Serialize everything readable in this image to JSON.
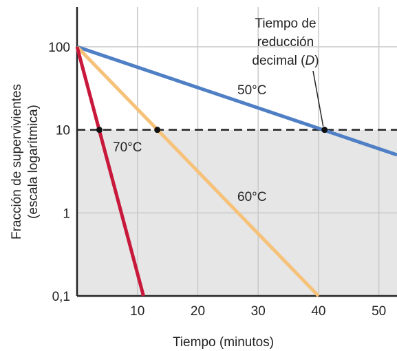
{
  "chart_data": {
    "type": "line",
    "xlabel": "Tiempo (minutos)",
    "ylabel": "Fracción de supervivientes (escala logarítmica)",
    "ylabel_lines": [
      "Fracción de supervivientes",
      "(escala logarítmica)"
    ],
    "xlim": [
      0,
      53
    ],
    "ylim": [
      0.1,
      100
    ],
    "yscale": "log",
    "grid": true,
    "xticks": [
      10,
      20,
      30,
      40,
      50
    ],
    "xtick_labels": [
      "10",
      "20",
      "30",
      "40",
      "50"
    ],
    "yticks": [
      0.1,
      1,
      10,
      100
    ],
    "ytick_labels": [
      "0,1",
      "1",
      "10",
      "100"
    ],
    "reference_line": {
      "y": 10,
      "style": "dashed"
    },
    "shaded_below": 10,
    "series": [
      {
        "name": "50°C",
        "color": "#4f7fc4",
        "x": [
          0,
          53
        ],
        "y": [
          100,
          5
        ]
      },
      {
        "name": "60°C",
        "color": "#f6c27a",
        "x": [
          0,
          40
        ],
        "y": [
          100,
          0.1
        ]
      },
      {
        "name": "70°C",
        "color": "#c8193c",
        "x": [
          0,
          11
        ],
        "y": [
          100,
          0.1
        ]
      }
    ],
    "d_points": [
      {
        "x": 3.7,
        "y": 10
      },
      {
        "x": 13.3,
        "y": 10
      },
      {
        "x": 41,
        "y": 10
      }
    ],
    "annotation": {
      "lines": [
        "Tiempo de",
        "reducción",
        "decimal (D)"
      ],
      "target": {
        "x": 41,
        "y": 10
      }
    },
    "colors": {
      "plot_bg_top": "#ffffff",
      "plot_bg_bottom": "#e6e6e6",
      "grid": "#c9c9c9",
      "axis": "#222222"
    }
  }
}
